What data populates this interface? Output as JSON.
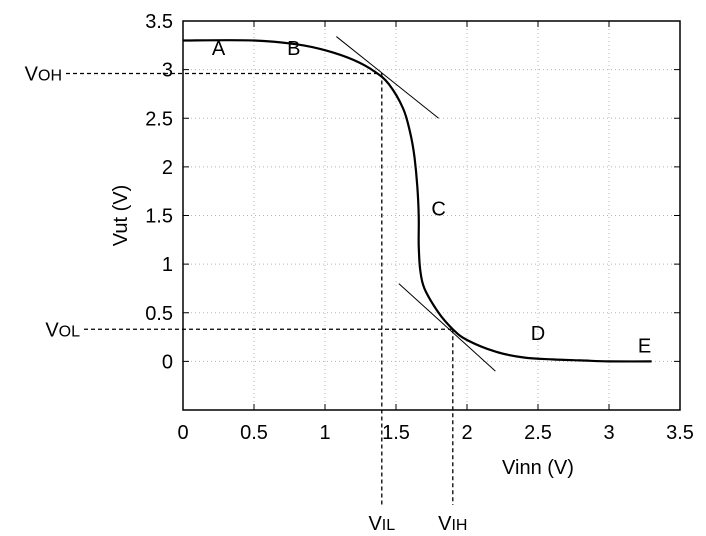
{
  "chart_data": {
    "type": "line",
    "title": "",
    "xlabel": "Vinn (V)",
    "ylabel": "Vut (V)",
    "xlim": [
      0,
      3.5
    ],
    "ylim": [
      -0.5,
      3.5
    ],
    "x_ticks": [
      0,
      0.5,
      1,
      1.5,
      2,
      2.5,
      3,
      3.5
    ],
    "x_tick_labels": [
      "0",
      "0.5",
      "1",
      "1.5",
      "2",
      "2.5",
      "3",
      "3.5"
    ],
    "y_ticks": [
      0,
      0.5,
      1,
      1.5,
      2,
      2.5,
      3,
      3.5
    ],
    "y_tick_labels": [
      "0",
      "0.5",
      "1",
      "1.5",
      "2",
      "2.5",
      "3",
      "3.5"
    ],
    "grid": true,
    "series": [
      {
        "x": [
          0,
          0.5,
          0.8,
          1.0,
          1.2,
          1.35,
          1.45,
          1.55,
          1.6,
          1.63,
          1.65,
          1.66,
          1.66,
          1.67,
          1.7,
          1.8,
          1.9,
          2.0,
          2.2,
          2.4,
          2.6,
          2.8,
          3.0,
          3.3
        ],
        "values": [
          3.3,
          3.3,
          3.26,
          3.2,
          3.1,
          2.98,
          2.85,
          2.6,
          2.35,
          2.1,
          1.8,
          1.5,
          1.2,
          0.95,
          0.75,
          0.5,
          0.33,
          0.22,
          0.1,
          0.04,
          0.02,
          0.01,
          0.0,
          0.0
        ],
        "color": "#000000"
      }
    ],
    "tangents": [
      {
        "x": [
          1.08,
          1.8
        ],
        "values": [
          3.34,
          2.5
        ]
      },
      {
        "x": [
          1.52,
          2.2
        ],
        "values": [
          0.8,
          -0.1
        ]
      }
    ],
    "markers": [
      {
        "label": "VOH",
        "x": 1.4,
        "y": 2.96
      },
      {
        "label": "VOL",
        "x": 1.9,
        "y": 0.33
      },
      {
        "label": "VIL",
        "x": 1.4,
        "y": 2.96
      },
      {
        "label": "VIH",
        "x": 1.9,
        "y": 0.33
      }
    ],
    "annotations": [
      {
        "text": "A",
        "x": 0.25,
        "y": 3.15
      },
      {
        "text": "B",
        "x": 0.78,
        "y": 3.15
      },
      {
        "text": "C",
        "x": 1.8,
        "y": 1.5
      },
      {
        "text": "D",
        "x": 2.5,
        "y": 0.22
      },
      {
        "text": "E",
        "x": 3.25,
        "y": 0.09
      }
    ]
  }
}
